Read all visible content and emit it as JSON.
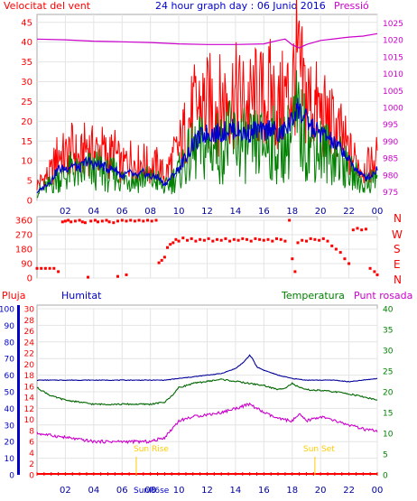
{
  "header": {
    "left_title": "Velocitat del vent",
    "center_title": "24 hour graph day : 06 Junio 2016",
    "right_title": "Pressió"
  },
  "panel2_labels": [
    "N",
    "W",
    "S",
    "E",
    "N"
  ],
  "panel3_header": {
    "rain_label": "Pluja",
    "humidity_label": "Humitat",
    "temperature_label": "Temperatura",
    "dewpoint_label": "Punt rosada"
  },
  "annotations": {
    "sunrise": "Sun Rise",
    "sunset": "Sun Set",
    "sunrise_time": "SunR6se"
  },
  "colors": {
    "wind_gust": "#ff0000",
    "wind_avg": "#008000",
    "wind_direction": "#ff0000",
    "pressure": "#cc00cc",
    "humidity": "#000099",
    "temperature": "#006600",
    "dewpoint": "#cc00cc",
    "rain": "#ff0000",
    "sun_marker": "#ffcc00",
    "wind_avg_line": "#0000cc"
  },
  "chart_data": [
    {
      "type": "line",
      "id": "wind-pressure",
      "x_ticks": [
        "02",
        "04",
        "06",
        "08",
        "10",
        "12",
        "14",
        "16",
        "18",
        "20",
        "22",
        "00"
      ],
      "y_left_ticks": [
        "0",
        "5",
        "10",
        "15",
        "20",
        "25",
        "30",
        "35",
        "40",
        "45"
      ],
      "y_right_ticks": [
        "975",
        "980",
        "985",
        "990",
        "995",
        "1000",
        "1005",
        "1010",
        "1015",
        "1020",
        "1025"
      ],
      "ylim_left": [
        0,
        47
      ],
      "ylim_right": [
        972.5,
        1027.5
      ],
      "xlim": [
        0,
        24
      ],
      "series": [
        {
          "axis": "left",
          "x": [
            0,
            1,
            1.5,
            2,
            2.5,
            3,
            3.5,
            4,
            4.5,
            5,
            5.5,
            6,
            6.5,
            7,
            7.5,
            8,
            8.5,
            9,
            9.5,
            10,
            10.5,
            11,
            11.5,
            12,
            12.5,
            13,
            13.5,
            14,
            14.5,
            15,
            15.5,
            16,
            16.5,
            17,
            17.5,
            18,
            18.3,
            18.6,
            19,
            19.5,
            20,
            20.5,
            21,
            21.5,
            22,
            22.5,
            23,
            23.5,
            24
          ],
          "values": [
            4,
            7,
            12,
            11,
            13,
            10,
            14,
            12,
            13,
            11,
            12,
            8,
            11,
            9,
            10,
            8,
            9,
            6,
            10,
            13,
            18,
            22,
            24,
            24,
            25,
            24,
            27,
            26,
            25,
            24,
            26,
            25,
            27,
            23,
            26,
            28,
            35,
            30,
            26,
            24,
            22,
            20,
            18,
            16,
            12,
            10,
            8,
            9,
            11
          ],
          "style": "gust"
        },
        {
          "axis": "left",
          "x": [
            0,
            1,
            1.5,
            2,
            2.5,
            3,
            3.5,
            4,
            4.5,
            5,
            5.5,
            6,
            6.5,
            7,
            7.5,
            8,
            8.5,
            9,
            9.5,
            10,
            10.5,
            11,
            11.5,
            12,
            12.5,
            13,
            13.5,
            14,
            14.5,
            15,
            15.5,
            16,
            16.5,
            17,
            17.5,
            18,
            18.3,
            18.6,
            19,
            19.5,
            20,
            20.5,
            21,
            21.5,
            22,
            22.5,
            23,
            23.5,
            24
          ],
          "values": [
            2,
            4,
            6,
            6,
            8,
            6,
            8,
            7,
            8,
            6,
            7,
            5,
            6,
            5,
            6,
            5,
            5,
            3,
            5,
            7,
            10,
            12,
            13,
            13,
            14,
            13,
            15,
            15,
            14,
            13,
            14,
            14,
            15,
            12,
            14,
            16,
            20,
            18,
            15,
            14,
            13,
            12,
            11,
            10,
            7,
            6,
            4,
            5,
            6
          ],
          "style": "average"
        },
        {
          "axis": "left",
          "x": [
            0,
            1,
            1.5,
            2,
            2.5,
            3,
            3.5,
            4,
            4.5,
            5,
            5.5,
            6,
            6.5,
            7,
            7.5,
            8,
            8.5,
            9,
            9.5,
            10,
            10.5,
            11,
            11.5,
            12,
            12.5,
            13,
            13.5,
            14,
            14.5,
            15,
            15.5,
            16,
            16.5,
            17,
            17.5,
            18,
            18.3,
            18.6,
            19,
            19.5,
            20,
            20.5,
            21,
            21.5,
            22,
            22.5,
            23,
            23.5,
            24
          ],
          "values": [
            2,
            5,
            8,
            8,
            9,
            8,
            10,
            9,
            9,
            8,
            8,
            6,
            7,
            6,
            7,
            6,
            6,
            4,
            6,
            8,
            11,
            14,
            16,
            17,
            17,
            17,
            18,
            18,
            17,
            17,
            18,
            17,
            19,
            16,
            18,
            20,
            24,
            22,
            20,
            18,
            17,
            16,
            14,
            13,
            10,
            8,
            6,
            6,
            8
          ],
          "style": "average-line"
        },
        {
          "axis": "right",
          "x": [
            0,
            2,
            4,
            6,
            8,
            10,
            12,
            14,
            16,
            17,
            17.5,
            18,
            18.5,
            19,
            20,
            21,
            22,
            23,
            24
          ],
          "values": [
            1020.2,
            1020.0,
            1019.6,
            1019.4,
            1019.2,
            1018.8,
            1018.6,
            1018.6,
            1018.8,
            1019.8,
            1020.2,
            1018.5,
            1017.6,
            1018.6,
            1019.8,
            1020.3,
            1020.8,
            1021.1,
            1021.8
          ],
          "style": "pressure"
        }
      ]
    },
    {
      "type": "scatter",
      "id": "wind-direction",
      "y_ticks": [
        "0",
        "90",
        "180",
        "270",
        "360"
      ],
      "ylim": [
        0,
        360
      ],
      "xlim": [
        0,
        24
      ],
      "points": [
        [
          0,
          60
        ],
        [
          0.3,
          60
        ],
        [
          0.6,
          60
        ],
        [
          0.9,
          60
        ],
        [
          1.2,
          60
        ],
        [
          1.5,
          40
        ],
        [
          1.8,
          350
        ],
        [
          2,
          355
        ],
        [
          2.2,
          360
        ],
        [
          2.4,
          350
        ],
        [
          2.7,
          355
        ],
        [
          3,
          360
        ],
        [
          3.2,
          350
        ],
        [
          3.4,
          345
        ],
        [
          3.6,
          5
        ],
        [
          3.8,
          355
        ],
        [
          4.1,
          360
        ],
        [
          4.3,
          350
        ],
        [
          4.6,
          355
        ],
        [
          4.9,
          360
        ],
        [
          5.1,
          350
        ],
        [
          5.4,
          345
        ],
        [
          5.7,
          355
        ],
        [
          6,
          360
        ],
        [
          6.3,
          355
        ],
        [
          6.6,
          360
        ],
        [
          6.9,
          355
        ],
        [
          7.2,
          360
        ],
        [
          7.5,
          355
        ],
        [
          7.8,
          360
        ],
        [
          8.1,
          355
        ],
        [
          8.4,
          360
        ],
        [
          8.6,
          95
        ],
        [
          8.8,
          110
        ],
        [
          9,
          130
        ],
        [
          9.2,
          190
        ],
        [
          9.4,
          210
        ],
        [
          9.6,
          220
        ],
        [
          9.8,
          240
        ],
        [
          10,
          230
        ],
        [
          10.3,
          250
        ],
        [
          10.6,
          235
        ],
        [
          10.9,
          245
        ],
        [
          11.2,
          230
        ],
        [
          11.5,
          240
        ],
        [
          11.8,
          235
        ],
        [
          12.1,
          245
        ],
        [
          12.4,
          230
        ],
        [
          12.7,
          240
        ],
        [
          13,
          235
        ],
        [
          13.3,
          245
        ],
        [
          13.6,
          230
        ],
        [
          13.9,
          240
        ],
        [
          14.2,
          235
        ],
        [
          14.5,
          245
        ],
        [
          14.8,
          240
        ],
        [
          15.1,
          230
        ],
        [
          15.4,
          245
        ],
        [
          15.7,
          240
        ],
        [
          16,
          235
        ],
        [
          16.3,
          240
        ],
        [
          16.6,
          230
        ],
        [
          16.9,
          245
        ],
        [
          17.2,
          240
        ],
        [
          17.5,
          230
        ],
        [
          17.8,
          360
        ],
        [
          18,
          120
        ],
        [
          18.2,
          40
        ],
        [
          18.4,
          220
        ],
        [
          18.7,
          235
        ],
        [
          19,
          230
        ],
        [
          19.3,
          245
        ],
        [
          19.6,
          240
        ],
        [
          19.9,
          235
        ],
        [
          20.2,
          245
        ],
        [
          20.5,
          230
        ],
        [
          20.8,
          200
        ],
        [
          21.1,
          180
        ],
        [
          21.4,
          160
        ],
        [
          21.7,
          120
        ],
        [
          22,
          90
        ],
        [
          22.3,
          300
        ],
        [
          22.6,
          310
        ],
        [
          22.9,
          300
        ],
        [
          23.2,
          305
        ],
        [
          23.5,
          60
        ],
        [
          23.8,
          40
        ],
        [
          24,
          20
        ],
        [
          5.7,
          10
        ],
        [
          6.3,
          20
        ]
      ]
    },
    {
      "type": "line",
      "id": "humidity-temperature",
      "y_left_rain_ticks": [
        "0",
        "2",
        "4",
        "6",
        "8",
        "10",
        "12",
        "14",
        "16",
        "18",
        "20",
        "22",
        "24",
        "26",
        "28",
        "30"
      ],
      "y_left_humidity_ticks": [
        "0",
        "10",
        "20",
        "30",
        "40",
        "50",
        "60",
        "70",
        "80",
        "90",
        "100"
      ],
      "y_right_ticks": [
        "0",
        "5",
        "10",
        "15",
        "20",
        "25",
        "30",
        "35",
        "40"
      ],
      "ylim_humidity": [
        0,
        100
      ],
      "ylim_temp": [
        0,
        40
      ],
      "xlim": [
        0,
        24
      ],
      "series": [
        {
          "axis": "humidity",
          "x": [
            0,
            2,
            4,
            6,
            8,
            9,
            10,
            11,
            12,
            13,
            14,
            14.6,
            15,
            15.2,
            15.5,
            16,
            17,
            18,
            19,
            20,
            21,
            22,
            23,
            24
          ],
          "values": [
            57,
            57,
            57,
            57,
            57,
            57,
            58,
            59,
            60,
            61,
            64,
            68,
            72,
            70,
            65,
            63,
            60,
            58,
            57,
            57,
            57,
            56,
            57,
            58
          ],
          "style": "humidity"
        },
        {
          "axis": "temp",
          "x": [
            0,
            1,
            2,
            3,
            4,
            5,
            6,
            7,
            8,
            9,
            9.5,
            10,
            11,
            12,
            13,
            14,
            15,
            16,
            17,
            17.5,
            18,
            18.5,
            19,
            20,
            21,
            22,
            23,
            24
          ],
          "values": [
            21,
            19,
            18,
            17.5,
            17,
            17,
            17,
            17,
            17,
            17.5,
            19,
            21,
            22,
            22.5,
            23,
            22.5,
            22,
            21.5,
            20.5,
            21,
            22,
            21,
            20.5,
            20.3,
            20,
            19.5,
            18.8,
            18
          ],
          "style": "temperature"
        },
        {
          "axis": "temp",
          "x": [
            0,
            1,
            2,
            3,
            4,
            5,
            6,
            7,
            8,
            9,
            9.5,
            10,
            11,
            12,
            13,
            14,
            14.5,
            15,
            15.5,
            16,
            17,
            18,
            18.5,
            19,
            20,
            21,
            22,
            23,
            24
          ],
          "values": [
            10,
            9.5,
            9,
            8.5,
            8,
            8,
            8,
            8,
            8,
            9,
            11,
            13,
            14,
            14.5,
            15,
            16,
            16.5,
            17,
            16,
            15,
            13.5,
            13,
            14.5,
            13,
            14,
            13,
            12,
            11,
            10.5
          ],
          "style": "dewpoint"
        },
        {
          "axis": "rain",
          "x": [
            0,
            24
          ],
          "values": [
            0,
            0
          ],
          "style": "rain"
        }
      ],
      "sun_markers": [
        {
          "label_key": "sunrise",
          "x": 7.0
        },
        {
          "label_key": "sunset",
          "x": 19.6
        }
      ]
    }
  ]
}
